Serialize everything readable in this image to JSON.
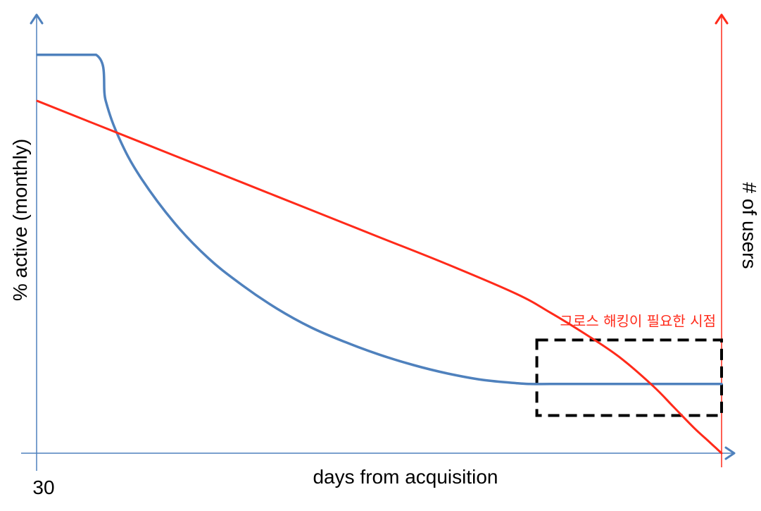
{
  "chart_data": {
    "type": "line",
    "title": "",
    "xlabel": "days from acquisition",
    "ylabel_left": "% active (monthly)",
    "ylabel_right": "# of users",
    "x_tick_labels": [
      "30"
    ],
    "xlim": [
      0,
      1
    ],
    "ylim": [
      0,
      1
    ],
    "grid": false,
    "legend": "none",
    "series": [
      {
        "axis": "left",
        "color": "#4f81bd",
        "x": [
          0.0,
          0.086,
          0.1,
          0.12,
          0.15,
          0.2,
          0.25,
          0.3,
          0.35,
          0.4,
          0.45,
          0.5,
          0.55,
          0.6,
          0.65,
          0.7,
          0.72,
          0.75,
          0.8,
          0.85,
          0.9,
          0.95,
          1.0
        ],
        "y": [
          0.95,
          0.95,
          0.84,
          0.75,
          0.66,
          0.55,
          0.465,
          0.4,
          0.345,
          0.3,
          0.265,
          0.235,
          0.21,
          0.19,
          0.175,
          0.167,
          0.165,
          0.165,
          0.165,
          0.165,
          0.165,
          0.165,
          0.165
        ]
      },
      {
        "axis": "right",
        "color": "#ff2a1a",
        "x": [
          0.0,
          0.1,
          0.2,
          0.3,
          0.4,
          0.5,
          0.6,
          0.7,
          0.75,
          0.8,
          0.85,
          0.9,
          0.93,
          0.96,
          0.98,
          1.0
        ],
        "y": [
          0.84,
          0.775,
          0.71,
          0.645,
          0.58,
          0.515,
          0.45,
          0.38,
          0.335,
          0.285,
          0.23,
          0.16,
          0.11,
          0.06,
          0.03,
          0.0
        ]
      }
    ],
    "annotation": {
      "label": "그로스 해킹이 필요한 시점",
      "color": "#ff2a1a",
      "box_style": "dashed",
      "region_x": [
        0.73,
        1.0
      ],
      "region_y": [
        0.09,
        0.27
      ]
    }
  },
  "colors": {
    "left_axis": "#4f81bd",
    "right_axis": "#ff2a1a",
    "box": "#000000"
  }
}
